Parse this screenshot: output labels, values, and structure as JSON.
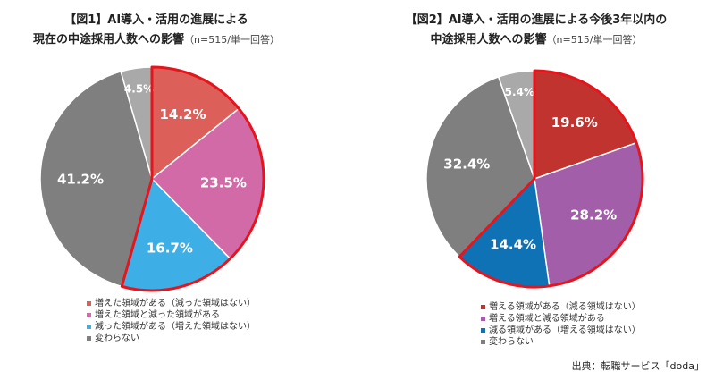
{
  "chart_data": [
    {
      "type": "pie",
      "title_line1": "【図1】AI導入・活用の進展による",
      "title_line2": "現在の中途採用人数への影響",
      "title_note": "（n=515/単一回答）",
      "slices": [
        {
          "label": "増えた領域がある（減った領域はない）",
          "value": 14.2,
          "display": "14.2%",
          "color": "#dc5f5a"
        },
        {
          "label": "増えた領域と減った領域がある",
          "value": 23.5,
          "display": "23.5%",
          "color": "#d36aa8"
        },
        {
          "label": "減った領域がある（増えた領域はない）",
          "value": 16.7,
          "display": "16.7%",
          "color": "#3daee6"
        },
        {
          "label": "変わらない",
          "value": 41.2,
          "display": "41.2%",
          "color": "#7f7f7f"
        },
        {
          "label": "",
          "value": 4.5,
          "display": "4.5%",
          "color": "#a9a9a9"
        }
      ],
      "highlight_color": "#e8141c",
      "legend_placement": "bottom"
    },
    {
      "type": "pie",
      "title_line1": "【図2】AI導入・活用の進展による今後3年以内の",
      "title_line2": "中途採用人数への影響",
      "title_note": "（n=515/単一回答）",
      "slices": [
        {
          "label": "増える領域がある（減る領域はない）",
          "value": 19.6,
          "display": "19.6%",
          "color": "#c0332e"
        },
        {
          "label": "増える領域と減る領域がある",
          "value": 28.2,
          "display": "28.2%",
          "color": "#a25ea8"
        },
        {
          "label": "減る領域がある（増える領域はない）",
          "value": 14.4,
          "display": "14.4%",
          "color": "#0f72b5"
        },
        {
          "label": "変わらない",
          "value": 32.4,
          "display": "32.4%",
          "color": "#7f7f7f"
        },
        {
          "label": "",
          "value": 5.4,
          "display": "5.4%",
          "color": "#a9a9a9"
        }
      ],
      "highlight_color": "#e8141c",
      "legend_placement": "bottom"
    }
  ],
  "source": "出典：転職サービス「doda」"
}
